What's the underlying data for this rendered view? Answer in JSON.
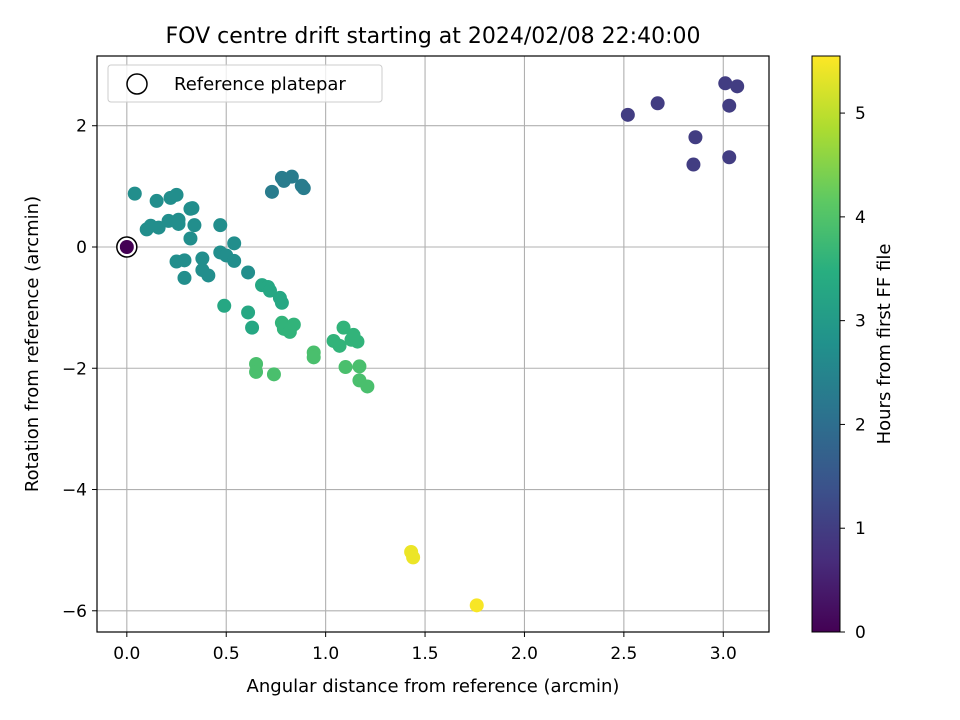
{
  "chart_data": {
    "type": "scatter",
    "title": "FOV centre drift starting at 2024/02/08 22:40:00",
    "xlabel": "Angular distance from reference (arcmin)",
    "ylabel": "Rotation from reference (arcmin)",
    "xlim": [
      -0.15,
      3.23
    ],
    "ylim": [
      -6.35,
      3.15
    ],
    "xticks": [
      0.0,
      0.5,
      1.0,
      1.5,
      2.0,
      2.5,
      3.0
    ],
    "xtick_labels": [
      "0.0",
      "0.5",
      "1.0",
      "1.5",
      "2.0",
      "2.5",
      "3.0"
    ],
    "yticks": [
      2,
      0,
      -2,
      -4,
      -6
    ],
    "ytick_labels": [
      "2",
      "0",
      "−2",
      "−4",
      "−6"
    ],
    "grid": true,
    "legend": {
      "position": "upper-left",
      "entries": [
        "Reference platepar"
      ]
    },
    "colorbar": {
      "label": "Hours from first FF file",
      "colormap": "viridis",
      "range": [
        0,
        5.55
      ],
      "ticks": [
        0,
        1,
        2,
        3,
        4,
        5
      ],
      "tick_labels": [
        "0",
        "1",
        "2",
        "3",
        "4",
        "5"
      ]
    },
    "reference": {
      "x": 0.0,
      "y": 0.0,
      "c": 0.0
    },
    "points": [
      {
        "x": 2.52,
        "y": 2.18,
        "c": 1.0
      },
      {
        "x": 2.67,
        "y": 2.37,
        "c": 1.0
      },
      {
        "x": 3.01,
        "y": 2.7,
        "c": 1.0
      },
      {
        "x": 3.07,
        "y": 2.65,
        "c": 1.0
      },
      {
        "x": 3.03,
        "y": 2.33,
        "c": 1.0
      },
      {
        "x": 2.86,
        "y": 1.81,
        "c": 1.0
      },
      {
        "x": 2.85,
        "y": 1.36,
        "c": 1.0
      },
      {
        "x": 3.03,
        "y": 1.48,
        "c": 1.0
      },
      {
        "x": 0.73,
        "y": 0.91,
        "c": 2.3
      },
      {
        "x": 0.78,
        "y": 1.14,
        "c": 2.3
      },
      {
        "x": 0.79,
        "y": 1.09,
        "c": 2.3
      },
      {
        "x": 0.83,
        "y": 1.16,
        "c": 2.3
      },
      {
        "x": 0.88,
        "y": 1.01,
        "c": 2.3
      },
      {
        "x": 0.89,
        "y": 0.97,
        "c": 2.3
      },
      {
        "x": 0.04,
        "y": 0.88,
        "c": 2.7
      },
      {
        "x": 0.1,
        "y": 0.29,
        "c": 2.7
      },
      {
        "x": 0.12,
        "y": 0.35,
        "c": 2.7
      },
      {
        "x": 0.15,
        "y": 0.76,
        "c": 2.7
      },
      {
        "x": 0.16,
        "y": 0.32,
        "c": 2.7
      },
      {
        "x": 0.21,
        "y": 0.43,
        "c": 2.7
      },
      {
        "x": 0.22,
        "y": 0.81,
        "c": 2.7
      },
      {
        "x": 0.25,
        "y": 0.86,
        "c": 2.7
      },
      {
        "x": 0.26,
        "y": 0.38,
        "c": 2.7
      },
      {
        "x": 0.26,
        "y": 0.45,
        "c": 2.7
      },
      {
        "x": 0.32,
        "y": 0.63,
        "c": 2.7
      },
      {
        "x": 0.33,
        "y": 0.64,
        "c": 2.7
      },
      {
        "x": 0.34,
        "y": 0.36,
        "c": 2.7
      },
      {
        "x": 0.32,
        "y": 0.14,
        "c": 2.7
      },
      {
        "x": 0.25,
        "y": -0.24,
        "c": 2.7
      },
      {
        "x": 0.29,
        "y": -0.22,
        "c": 2.7
      },
      {
        "x": 0.29,
        "y": -0.51,
        "c": 2.7
      },
      {
        "x": 0.38,
        "y": -0.19,
        "c": 2.7
      },
      {
        "x": 0.38,
        "y": -0.38,
        "c": 2.7
      },
      {
        "x": 0.41,
        "y": -0.47,
        "c": 2.7
      },
      {
        "x": 0.47,
        "y": 0.36,
        "c": 2.7
      },
      {
        "x": 0.47,
        "y": -0.09,
        "c": 2.7
      },
      {
        "x": 0.5,
        "y": -0.14,
        "c": 2.7
      },
      {
        "x": 0.54,
        "y": 0.06,
        "c": 2.7
      },
      {
        "x": 0.54,
        "y": -0.23,
        "c": 2.7
      },
      {
        "x": 0.61,
        "y": -0.42,
        "c": 2.7
      },
      {
        "x": 0.49,
        "y": -0.97,
        "c": 3.3
      },
      {
        "x": 0.61,
        "y": -1.08,
        "c": 3.3
      },
      {
        "x": 0.63,
        "y": -1.33,
        "c": 3.3
      },
      {
        "x": 0.68,
        "y": -0.63,
        "c": 3.3
      },
      {
        "x": 0.71,
        "y": -0.66,
        "c": 3.3
      },
      {
        "x": 0.72,
        "y": -0.72,
        "c": 3.3
      },
      {
        "x": 0.77,
        "y": -0.84,
        "c": 3.3
      },
      {
        "x": 0.78,
        "y": -0.92,
        "c": 3.3
      },
      {
        "x": 0.78,
        "y": -1.25,
        "c": 3.6
      },
      {
        "x": 0.79,
        "y": -1.35,
        "c": 3.6
      },
      {
        "x": 0.82,
        "y": -1.4,
        "c": 3.6
      },
      {
        "x": 0.84,
        "y": -1.28,
        "c": 3.6
      },
      {
        "x": 1.04,
        "y": -1.55,
        "c": 3.6
      },
      {
        "x": 1.07,
        "y": -1.63,
        "c": 3.6
      },
      {
        "x": 1.09,
        "y": -1.33,
        "c": 3.6
      },
      {
        "x": 1.13,
        "y": -1.53,
        "c": 3.6
      },
      {
        "x": 1.14,
        "y": -1.45,
        "c": 3.6
      },
      {
        "x": 1.16,
        "y": -1.56,
        "c": 3.6
      },
      {
        "x": 0.65,
        "y": -1.93,
        "c": 3.9
      },
      {
        "x": 0.65,
        "y": -2.06,
        "c": 3.9
      },
      {
        "x": 0.74,
        "y": -2.1,
        "c": 3.9
      },
      {
        "x": 0.94,
        "y": -1.74,
        "c": 3.9
      },
      {
        "x": 0.94,
        "y": -1.82,
        "c": 3.9
      },
      {
        "x": 1.1,
        "y": -1.98,
        "c": 3.9
      },
      {
        "x": 1.17,
        "y": -1.97,
        "c": 3.9
      },
      {
        "x": 1.17,
        "y": -2.2,
        "c": 3.9
      },
      {
        "x": 1.21,
        "y": -2.3,
        "c": 3.9
      },
      {
        "x": 1.43,
        "y": -5.03,
        "c": 5.4
      },
      {
        "x": 1.44,
        "y": -5.12,
        "c": 5.4
      },
      {
        "x": 1.76,
        "y": -5.91,
        "c": 5.5
      }
    ]
  }
}
